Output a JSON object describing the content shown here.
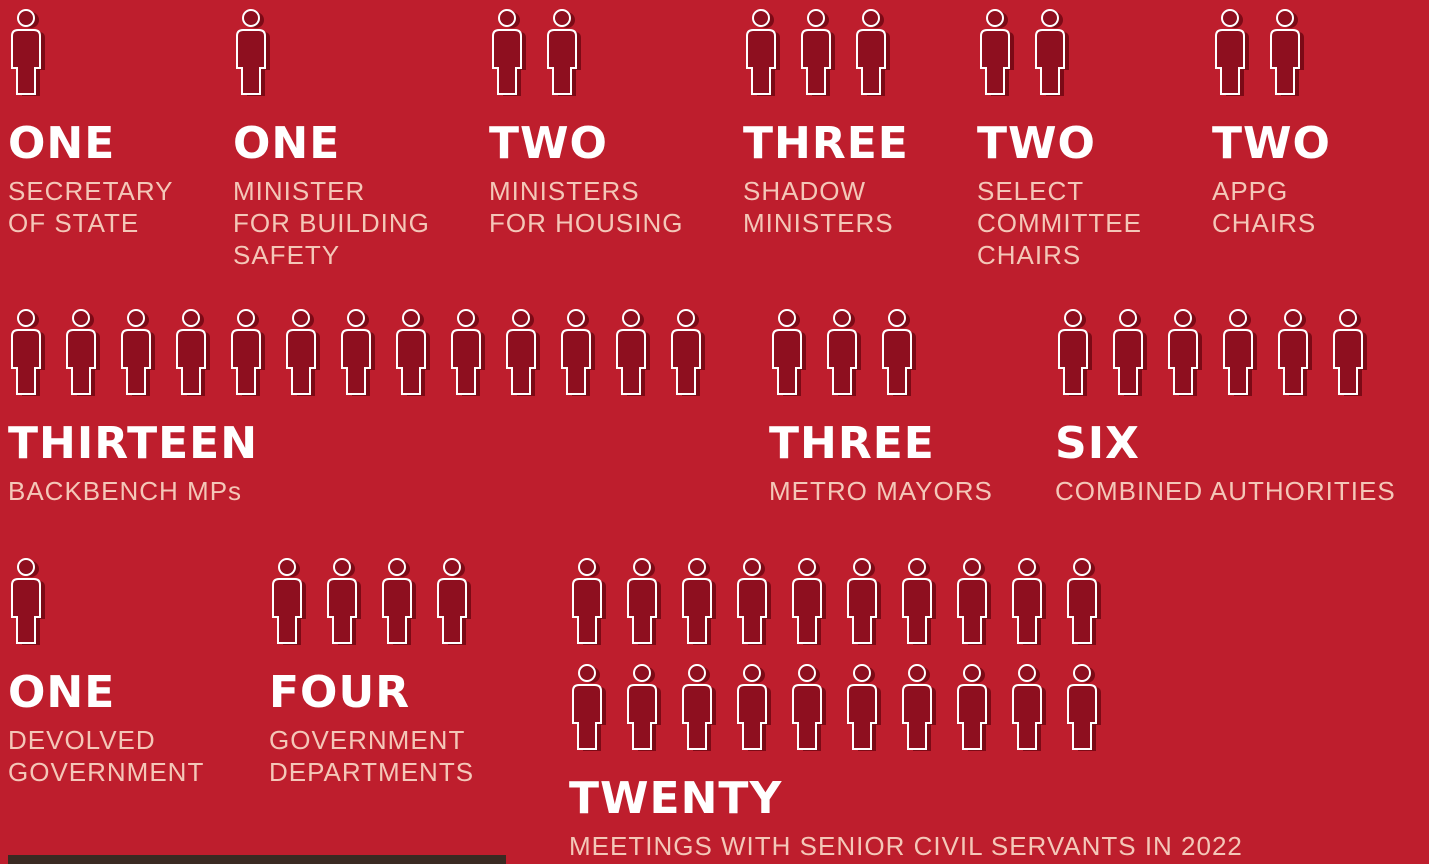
{
  "items": [
    {
      "word": "ONE",
      "count": 1,
      "label": [
        "SECRETARY",
        "OF STATE"
      ]
    },
    {
      "word": "ONE",
      "count": 1,
      "label": [
        "MINISTER",
        "FOR BUILDING",
        "SAFETY"
      ]
    },
    {
      "word": "TWO",
      "count": 2,
      "label": [
        "MINISTERS",
        "FOR HOUSING"
      ]
    },
    {
      "word": "THREE",
      "count": 3,
      "label": [
        "SHADOW",
        "MINISTERS"
      ]
    },
    {
      "word": "TWO",
      "count": 2,
      "label": [
        "SELECT",
        "COMMITTEE",
        "CHAIRS"
      ]
    },
    {
      "word": "TWO",
      "count": 2,
      "label": [
        "APPG",
        "CHAIRS"
      ]
    },
    {
      "word": "THIRTEEN",
      "count": 13,
      "label": [
        "BACKBENCH MPs"
      ]
    },
    {
      "word": "THREE",
      "count": 3,
      "label": [
        "METRO MAYORS"
      ]
    },
    {
      "word": "SIX",
      "count": 6,
      "label": [
        "COMBINED AUTHORITIES"
      ]
    },
    {
      "word": "ONE",
      "count": 1,
      "label": [
        "DEVOLVED",
        "GOVERNMENT"
      ]
    },
    {
      "word": "FOUR",
      "count": 4,
      "label": [
        "GOVERNMENT",
        "DEPARTMENTS"
      ]
    },
    {
      "word": "TWENTY",
      "count": 20,
      "label": [
        "MEETINGS WITH SENIOR CIVIL SERVANTS IN 2022"
      ]
    }
  ]
}
